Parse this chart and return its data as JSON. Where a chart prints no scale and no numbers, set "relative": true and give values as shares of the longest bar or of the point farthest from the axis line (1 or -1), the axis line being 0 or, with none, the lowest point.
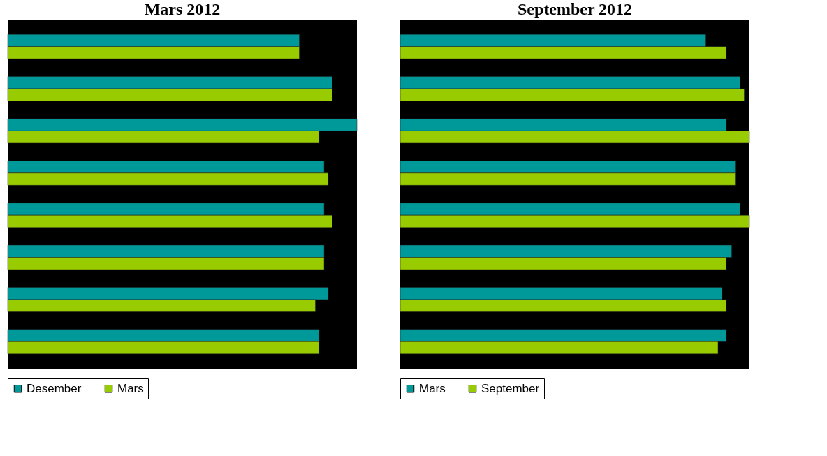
{
  "chart_data": [
    {
      "type": "bar",
      "orientation": "horizontal",
      "relative": true,
      "title": "Mars 2012",
      "categories": [
        null,
        null,
        null,
        null,
        null,
        null,
        null,
        null
      ],
      "legend": "bottom",
      "tick_labels": false,
      "series": [
        {
          "name": "Desember",
          "color": "#009999",
          "values": [
            0.835,
            0.929,
            1,
            0.906,
            0.906,
            0.906,
            0.918,
            0.892
          ]
        },
        {
          "name": "Mars",
          "color": "#99cc00",
          "values": [
            0.835,
            0.929,
            0.892,
            0.918,
            0.929,
            0.906,
            0.881,
            0.892
          ]
        }
      ]
    },
    {
      "type": "bar",
      "orientation": "horizontal",
      "relative": true,
      "title": "September 2012",
      "categories": [
        null,
        null,
        null,
        null,
        null,
        null,
        null,
        null
      ],
      "legend": "bottom",
      "tick_labels": false,
      "series": [
        {
          "name": "Mars",
          "color": "#009999",
          "values": [
            0.875,
            0.973,
            0.934,
            0.961,
            0.973,
            0.949,
            0.922,
            0.934
          ]
        },
        {
          "name": "September",
          "color": "#99cc00",
          "values": [
            0.934,
            0.985,
            1,
            0.961,
            1,
            0.934,
            0.934,
            0.91
          ]
        }
      ]
    }
  ]
}
